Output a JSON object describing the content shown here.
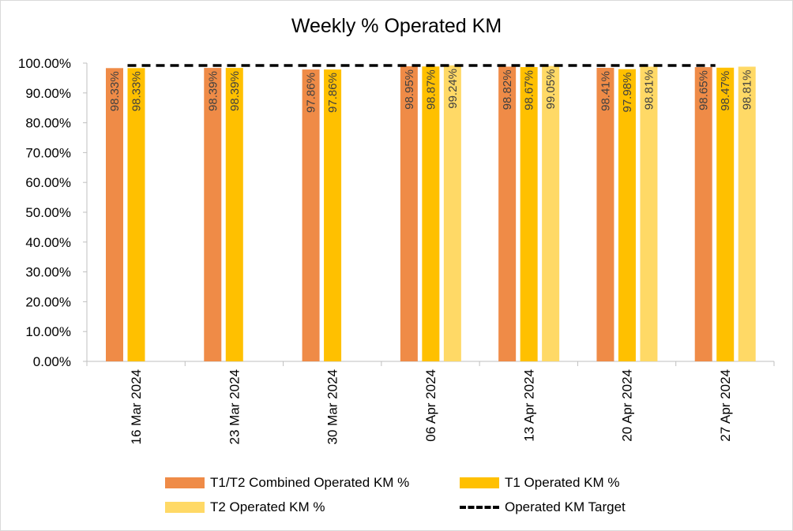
{
  "chart_data": {
    "type": "bar",
    "title": "Weekly % Operated KM",
    "xlabel": "",
    "ylabel": "",
    "ylim": [
      0,
      100
    ],
    "y_ticks": [
      "0.00%",
      "10.00%",
      "20.00%",
      "30.00%",
      "40.00%",
      "50.00%",
      "60.00%",
      "70.00%",
      "80.00%",
      "90.00%",
      "100.00%"
    ],
    "categories": [
      "16 Mar 2024",
      "23 Mar 2024",
      "30 Mar 2024",
      "06 Apr 2024",
      "13 Apr 2024",
      "20 Apr 2024",
      "27 Apr 2024"
    ],
    "series": [
      {
        "name": "T1/T2 Combined Operated KM %",
        "color": "#ef8b47",
        "values": [
          98.33,
          98.39,
          97.86,
          98.95,
          98.82,
          98.41,
          98.65
        ],
        "labels": [
          "98.33%",
          "98.39%",
          "97.86%",
          "98.95%",
          "98.82%",
          "98.41%",
          "98.65%"
        ]
      },
      {
        "name": "T1 Operated KM %",
        "color": "#ffc000",
        "values": [
          98.33,
          98.39,
          97.86,
          98.87,
          98.67,
          97.98,
          98.47
        ],
        "labels": [
          "98.33%",
          "98.39%",
          "97.86%",
          "98.87%",
          "98.67%",
          "97.98%",
          "98.47%"
        ]
      },
      {
        "name": "T2 Operated KM %",
        "color": "#ffd966",
        "values": [
          null,
          null,
          null,
          99.24,
          99.05,
          98.81,
          98.81
        ],
        "labels": [
          "",
          "",
          "",
          "99.24%",
          "99.05%",
          "98.81%",
          "98.81%"
        ]
      }
    ],
    "target": {
      "name": "Operated KM Target",
      "value": 99.2,
      "style": "dashed",
      "color": "#000000"
    },
    "grid": false,
    "legend_position": "bottom"
  }
}
